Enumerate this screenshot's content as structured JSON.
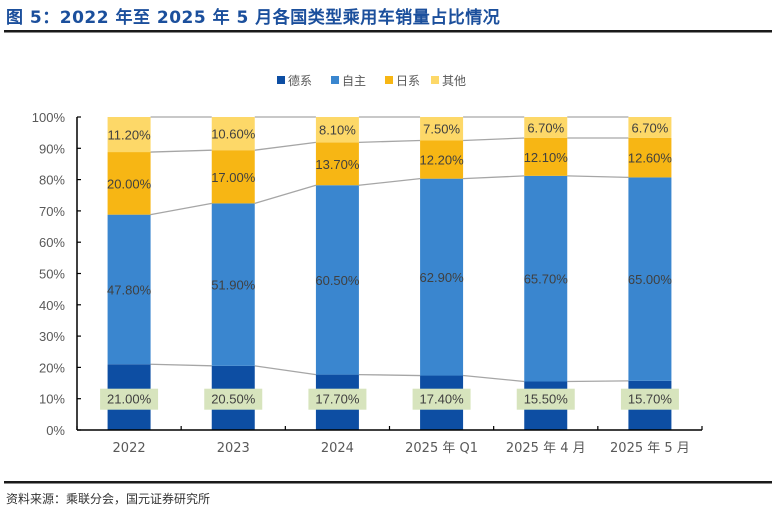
{
  "header": {
    "title": "图 5：2022 年至 2025 年 5 月各国类型乘用车销量占比情况"
  },
  "footer": {
    "source": "资料来源：乘联分会，国元证券研究所"
  },
  "chart_data": {
    "type": "bar",
    "stacked": true,
    "title": "图 5：2022 年至 2025 年 5 月各国类型乘用车销量占比情况",
    "xlabel": "",
    "ylabel": "",
    "ylim": [
      0,
      100
    ],
    "yticks": [
      "0%",
      "10%",
      "20%",
      "30%",
      "40%",
      "50%",
      "60%",
      "70%",
      "80%",
      "90%",
      "100%"
    ],
    "grid": false,
    "legend_position": "top-center",
    "series_connector_lines": true,
    "categories": [
      "2022",
      "2023",
      "2024",
      "2025 年 Q1",
      "2025 年 4 月",
      "2025 年 5 月"
    ],
    "series": [
      {
        "name": "德系",
        "color": "#0d4ea3",
        "values": [
          21.0,
          20.5,
          17.7,
          17.4,
          15.5,
          15.7
        ],
        "labels": [
          "21.00%",
          "20.50%",
          "17.70%",
          "17.40%",
          "15.50%",
          "15.70%"
        ],
        "label_box": "#d7e4bd"
      },
      {
        "name": "自主",
        "color": "#3a86cf",
        "values": [
          47.8,
          51.9,
          60.5,
          62.9,
          65.7,
          65.0
        ],
        "labels": [
          "47.80%",
          "51.90%",
          "60.50%",
          "62.90%",
          "65.70%",
          "65.00%"
        ]
      },
      {
        "name": "日系",
        "color": "#f7b614",
        "values": [
          20.0,
          17.0,
          13.7,
          12.2,
          12.1,
          12.6
        ],
        "labels": [
          "20.00%",
          "17.00%",
          "13.70%",
          "12.20%",
          "12.10%",
          "12.60%"
        ]
      },
      {
        "name": "其他",
        "color": "#fdd868",
        "values": [
          11.2,
          10.6,
          8.1,
          7.5,
          6.7,
          6.7
        ],
        "labels": [
          "11.20%",
          "10.60%",
          "8.10%",
          "7.50%",
          "6.70%",
          "6.70%"
        ]
      }
    ]
  }
}
